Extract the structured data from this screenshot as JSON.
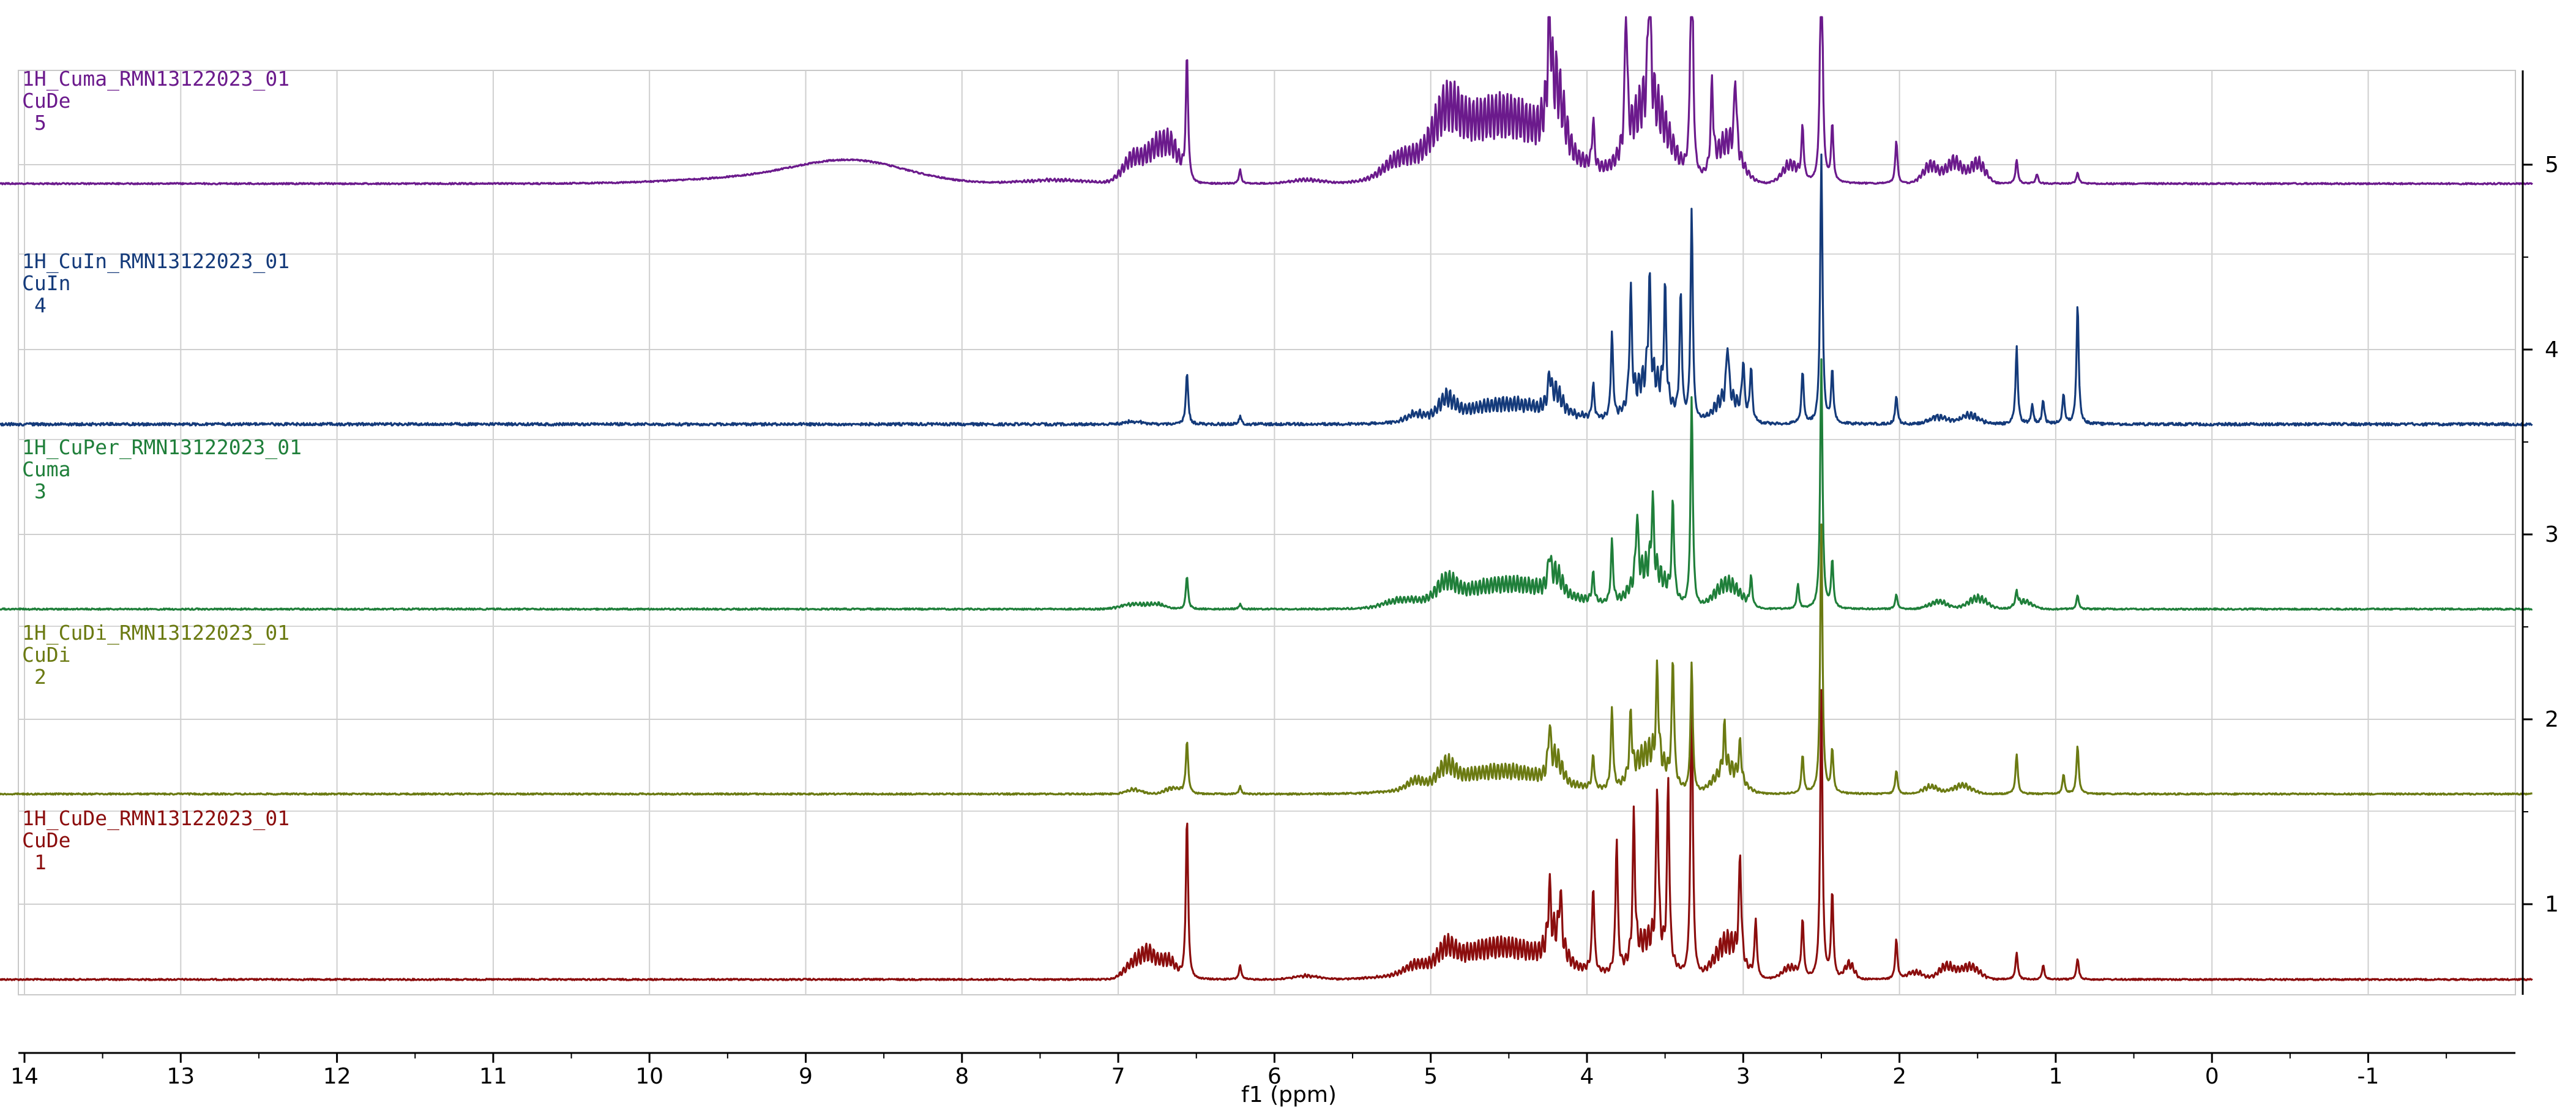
{
  "chart_data": {
    "type": "line",
    "xlabel": "f1 (ppm)",
    "xlim": [
      14,
      -2
    ],
    "x_ticks": [
      "14",
      "13",
      "12",
      "11",
      "10",
      "9",
      "8",
      "7",
      "6",
      "5",
      "4",
      "3",
      "2",
      "1",
      "0",
      "-1"
    ],
    "y_ticks": [
      "1",
      "2",
      "3",
      "4",
      "5"
    ],
    "grid": true,
    "series": [
      {
        "index": 1,
        "color": "#8b0d0d",
        "label_lines": [
          "1H_CuDe_RMN13122023_01",
          "CuDe",
          "1"
        ],
        "features": {
          "hump": [],
          "multiplets": [
            [
              6.9,
              0.22,
              0.06
            ],
            [
              6.8,
              0.3,
              0.05
            ],
            [
              6.68,
              0.25,
              0.05
            ],
            [
              5.8,
              0.05,
              0.08
            ],
            [
              5.1,
              0.08,
              0.06
            ],
            [
              4.9,
              0.2,
              0.05
            ],
            [
              4.55,
              0.45,
              0.35
            ],
            [
              4.2,
              0.35,
              0.05
            ],
            [
              3.6,
              0.5,
              0.1
            ],
            [
              3.1,
              0.5,
              0.08
            ],
            [
              2.7,
              0.15,
              0.05
            ],
            [
              2.32,
              0.2,
              0.03
            ],
            [
              1.9,
              0.1,
              0.05
            ],
            [
              1.7,
              0.18,
              0.05
            ],
            [
              1.55,
              0.18,
              0.06
            ]
          ],
          "peaks": [
            [
              6.56,
              1.7
            ],
            [
              6.22,
              0.15
            ],
            [
              4.24,
              0.6
            ],
            [
              4.17,
              0.55
            ],
            [
              3.96,
              0.9
            ],
            [
              3.81,
              1.4
            ],
            [
              3.7,
              1.5
            ],
            [
              3.55,
              1.7
            ],
            [
              3.48,
              1.9
            ],
            [
              3.33,
              3.2
            ],
            [
              3.02,
              1.1
            ],
            [
              2.92,
              0.6
            ],
            [
              2.62,
              0.6
            ],
            [
              2.5,
              3.0
            ],
            [
              2.43,
              0.9
            ],
            [
              2.02,
              0.42
            ],
            [
              1.25,
              0.28
            ],
            [
              1.08,
              0.15
            ],
            [
              0.86,
              0.22
            ]
          ]
        }
      },
      {
        "index": 2,
        "color": "#6b7a12",
        "label_lines": [
          "1H_CuDi_RMN13122023_01",
          "CuDi",
          "2"
        ],
        "features": {
          "hump": [],
          "multiplets": [
            [
              6.9,
              0.06,
              0.05
            ],
            [
              6.65,
              0.08,
              0.05
            ],
            [
              5.1,
              0.1,
              0.05
            ],
            [
              4.9,
              0.22,
              0.05
            ],
            [
              4.55,
              0.32,
              0.35
            ],
            [
              4.2,
              0.3,
              0.04
            ],
            [
              3.6,
              0.55,
              0.1
            ],
            [
              3.1,
              0.35,
              0.08
            ],
            [
              1.8,
              0.1,
              0.05
            ],
            [
              1.6,
              0.12,
              0.06
            ]
          ],
          "peaks": [
            [
              6.56,
              0.55
            ],
            [
              6.22,
              0.08
            ],
            [
              4.24,
              0.45
            ],
            [
              3.96,
              0.35
            ],
            [
              3.84,
              0.85
            ],
            [
              3.72,
              0.65
            ],
            [
              3.55,
              0.95
            ],
            [
              3.45,
              1.3
            ],
            [
              3.33,
              1.35
            ],
            [
              3.12,
              0.45
            ],
            [
              3.02,
              0.4
            ],
            [
              2.62,
              0.4
            ],
            [
              2.5,
              2.8
            ],
            [
              2.43,
              0.45
            ],
            [
              2.02,
              0.25
            ],
            [
              1.25,
              0.42
            ],
            [
              0.95,
              0.2
            ],
            [
              0.86,
              0.5
            ]
          ]
        }
      },
      {
        "index": 3,
        "color": "#1f7f3a",
        "label_lines": [
          "1H_CuPer_RMN13122023_01",
          "Cuma",
          "3"
        ],
        "features": {
          "hump": [],
          "multiplets": [
            [
              6.9,
              0.07,
              0.08
            ],
            [
              6.75,
              0.06,
              0.05
            ],
            [
              5.2,
              0.08,
              0.1
            ],
            [
              4.9,
              0.22,
              0.06
            ],
            [
              4.5,
              0.35,
              0.35
            ],
            [
              4.2,
              0.25,
              0.04
            ],
            [
              3.6,
              0.55,
              0.1
            ],
            [
              3.1,
              0.35,
              0.08
            ],
            [
              1.75,
              0.1,
              0.06
            ],
            [
              1.5,
              0.15,
              0.06
            ],
            [
              1.2,
              0.1,
              0.05
            ]
          ],
          "peaks": [
            [
              6.56,
              0.35
            ],
            [
              6.22,
              0.05
            ],
            [
              4.24,
              0.3
            ],
            [
              3.96,
              0.3
            ],
            [
              3.84,
              0.65
            ],
            [
              3.68,
              0.7
            ],
            [
              3.58,
              0.75
            ],
            [
              3.45,
              1.0
            ],
            [
              3.33,
              2.2
            ],
            [
              2.95,
              0.3
            ],
            [
              2.65,
              0.25
            ],
            [
              2.5,
              2.6
            ],
            [
              2.43,
              0.5
            ],
            [
              2.02,
              0.15
            ],
            [
              1.25,
              0.15
            ],
            [
              0.86,
              0.15
            ]
          ]
        }
      },
      {
        "index": 4,
        "color": "#143a7a",
        "label_lines": [
          "1H_CuIn_RMN13122023_01",
          "CuIn",
          "4"
        ],
        "features": {
          "hump": [],
          "multiplets": [
            [
              6.9,
              0.04,
              0.05
            ],
            [
              5.1,
              0.08,
              0.05
            ],
            [
              4.9,
              0.22,
              0.05
            ],
            [
              4.5,
              0.28,
              0.35
            ],
            [
              4.2,
              0.25,
              0.04
            ],
            [
              3.6,
              0.6,
              0.1
            ],
            [
              3.1,
              0.35,
              0.08
            ],
            [
              1.75,
              0.1,
              0.06
            ],
            [
              1.55,
              0.12,
              0.06
            ]
          ],
          "peaks": [
            [
              6.56,
              0.55
            ],
            [
              6.22,
              0.08
            ],
            [
              4.24,
              0.3
            ],
            [
              3.96,
              0.35
            ],
            [
              3.84,
              0.9
            ],
            [
              3.72,
              1.2
            ],
            [
              3.6,
              1.1
            ],
            [
              3.5,
              1.15
            ],
            [
              3.4,
              1.3
            ],
            [
              3.33,
              2.2
            ],
            [
              3.1,
              0.6
            ],
            [
              3.0,
              0.55
            ],
            [
              2.95,
              0.55
            ],
            [
              2.62,
              0.55
            ],
            [
              2.5,
              2.8
            ],
            [
              2.43,
              0.55
            ],
            [
              2.02,
              0.3
            ],
            [
              1.25,
              0.8
            ],
            [
              1.15,
              0.2
            ],
            [
              1.08,
              0.25
            ],
            [
              0.95,
              0.3
            ],
            [
              0.86,
              1.25
            ]
          ]
        }
      },
      {
        "index": 5,
        "color": "#6b1a8c",
        "label_lines": [
          "1H_Cuma_RMN13122023_01",
          "CuDe",
          "5"
        ],
        "features": {
          "hump": [
            [
              8.7,
              0.22,
              0.35
            ],
            [
              9.3,
              0.06,
              0.5
            ]
          ],
          "multiplets": [
            [
              6.9,
              0.35,
              0.07
            ],
            [
              6.75,
              0.45,
              0.06
            ],
            [
              6.65,
              0.4,
              0.05
            ],
            [
              7.4,
              0.05,
              0.2
            ],
            [
              5.8,
              0.05,
              0.1
            ],
            [
              5.2,
              0.2,
              0.1
            ],
            [
              4.9,
              0.5,
              0.08
            ],
            [
              4.55,
              0.95,
              0.35
            ],
            [
              4.2,
              0.8,
              0.05
            ],
            [
              3.6,
              1.1,
              0.12
            ],
            [
              3.1,
              0.55,
              0.08
            ],
            [
              2.7,
              0.25,
              0.05
            ],
            [
              1.8,
              0.25,
              0.05
            ],
            [
              1.65,
              0.3,
              0.05
            ],
            [
              1.5,
              0.28,
              0.05
            ]
          ],
          "peaks": [
            [
              6.56,
              1.3
            ],
            [
              6.22,
              0.15
            ],
            [
              4.24,
              1.2
            ],
            [
              3.96,
              0.5
            ],
            [
              3.75,
              1.5
            ],
            [
              3.6,
              1.6
            ],
            [
              3.33,
              3.2
            ],
            [
              3.2,
              0.9
            ],
            [
              3.05,
              0.8
            ],
            [
              2.62,
              0.55
            ],
            [
              2.5,
              3.0
            ],
            [
              2.43,
              0.6
            ],
            [
              2.02,
              0.45
            ],
            [
              1.25,
              0.25
            ],
            [
              1.12,
              0.1
            ],
            [
              0.86,
              0.12
            ]
          ]
        }
      }
    ]
  }
}
